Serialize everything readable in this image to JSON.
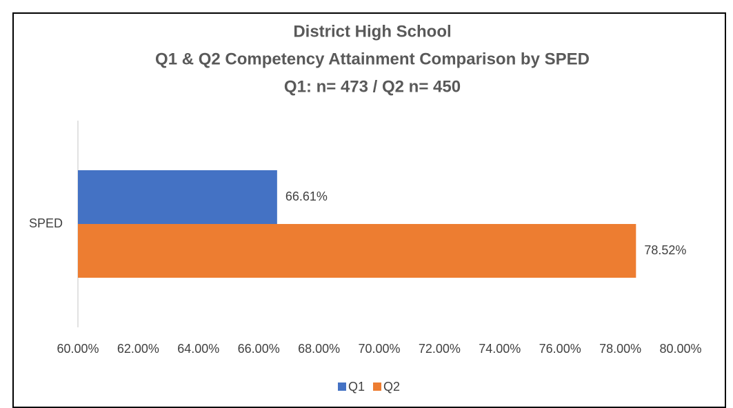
{
  "chart_data": {
    "type": "bar",
    "orientation": "horizontal",
    "title": [
      "District High School",
      "Q1 & Q2 Competency Attainment Comparison by SPED",
      "Q1: n= 473 / Q2 n= 450"
    ],
    "categories": [
      "SPED"
    ],
    "series": [
      {
        "name": "Q1",
        "color": "#4472c4",
        "values": [
          66.61
        ],
        "value_labels": [
          "66.61%"
        ]
      },
      {
        "name": "Q2",
        "color": "#ed7d31",
        "values": [
          78.52
        ],
        "value_labels": [
          "78.52%"
        ]
      }
    ],
    "xlim": [
      60,
      80
    ],
    "xticks": [
      {
        "value": 60,
        "label": "60.00%"
      },
      {
        "value": 62,
        "label": "62.00%"
      },
      {
        "value": 64,
        "label": "64.00%"
      },
      {
        "value": 66,
        "label": "66.00%"
      },
      {
        "value": 68,
        "label": "68.00%"
      },
      {
        "value": 70,
        "label": "70.00%"
      },
      {
        "value": 72,
        "label": "72.00%"
      },
      {
        "value": 74,
        "label": "74.00%"
      },
      {
        "value": 76,
        "label": "76.00%"
      },
      {
        "value": 78,
        "label": "78.00%"
      },
      {
        "value": 80,
        "label": "80.00%"
      }
    ],
    "grid": false,
    "legend": "bottom"
  }
}
